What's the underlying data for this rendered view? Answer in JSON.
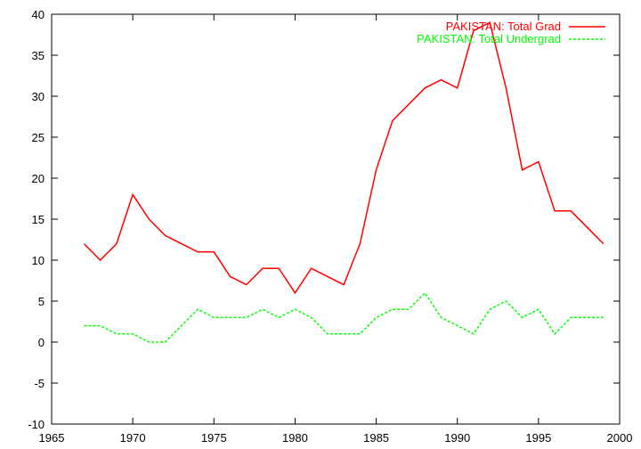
{
  "chart_data": {
    "type": "line",
    "title": "",
    "xlabel": "",
    "ylabel": "",
    "xlim": [
      1965,
      2000
    ],
    "ylim": [
      -10,
      40
    ],
    "xticks": [
      1965,
      1970,
      1975,
      1980,
      1985,
      1990,
      1995,
      2000
    ],
    "yticks": [
      -10,
      -5,
      0,
      5,
      10,
      15,
      20,
      25,
      30,
      35,
      40
    ],
    "grid": false,
    "legend_position": "top-right",
    "x": [
      1967,
      1968,
      1969,
      1970,
      1971,
      1972,
      1973,
      1974,
      1975,
      1976,
      1977,
      1978,
      1979,
      1980,
      1981,
      1982,
      1983,
      1984,
      1985,
      1986,
      1987,
      1988,
      1989,
      1990,
      1991,
      1992,
      1993,
      1994,
      1995,
      1996,
      1997,
      1998,
      1999
    ],
    "series": [
      {
        "name": "PAKISTAN: Total Grad",
        "color": "#ff0000",
        "dash": "solid",
        "values": [
          12,
          10,
          12,
          18,
          15,
          13,
          12,
          11,
          11,
          8,
          7,
          9,
          9,
          6,
          9,
          8,
          7,
          12,
          21,
          27,
          29,
          31,
          32,
          31,
          38,
          39,
          31,
          21,
          22,
          16,
          16,
          14,
          12
        ]
      },
      {
        "name": "PAKISTAN: Total Undergrad",
        "color": "#00ff00",
        "dash": "dashed",
        "values": [
          2,
          2,
          1,
          1,
          0,
          0,
          2,
          4,
          3,
          3,
          3,
          4,
          3,
          4,
          3,
          1,
          1,
          1,
          3,
          4,
          4,
          6,
          3,
          2,
          1,
          4,
          5,
          3,
          4,
          1,
          3,
          3,
          3
        ]
      }
    ]
  }
}
